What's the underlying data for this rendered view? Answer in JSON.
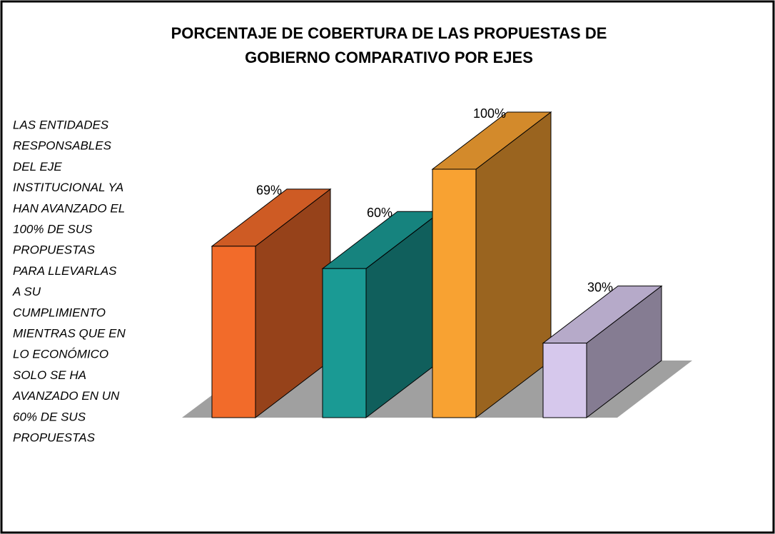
{
  "chart_data": {
    "type": "bar",
    "title": [
      "PORCENTAJE DE COBERTURA DE LAS PROPUESTAS DE",
      "GOBIERNO COMPARATIVO POR EJES"
    ],
    "annotation": [
      "LAS ENTIDADES",
      "RESPONSABLES",
      "DEL EJE",
      "INSTITUCIONAL YA",
      "HAN AVANZADO EL",
      "100% DE SUS",
      "PROPUESTAS",
      "PARA  LLEVARLAS",
      "A SU",
      "CUMPLIMIENTO",
      "MIENTRAS QUE  EN",
      "LO ECONÓMICO",
      "SOLO SE HA",
      "AVANZADO EN UN",
      "60%  DE SUS",
      "PROPUESTAS"
    ],
    "categories": [
      null,
      null,
      null,
      null
    ],
    "values": [
      69,
      60,
      100,
      30
    ],
    "value_labels": [
      "69%",
      "60%",
      "100%",
      "30%"
    ],
    "colors": [
      "#f26b2a",
      "#1a9a94",
      "#f8a232",
      "#d6c8ec"
    ]
  }
}
